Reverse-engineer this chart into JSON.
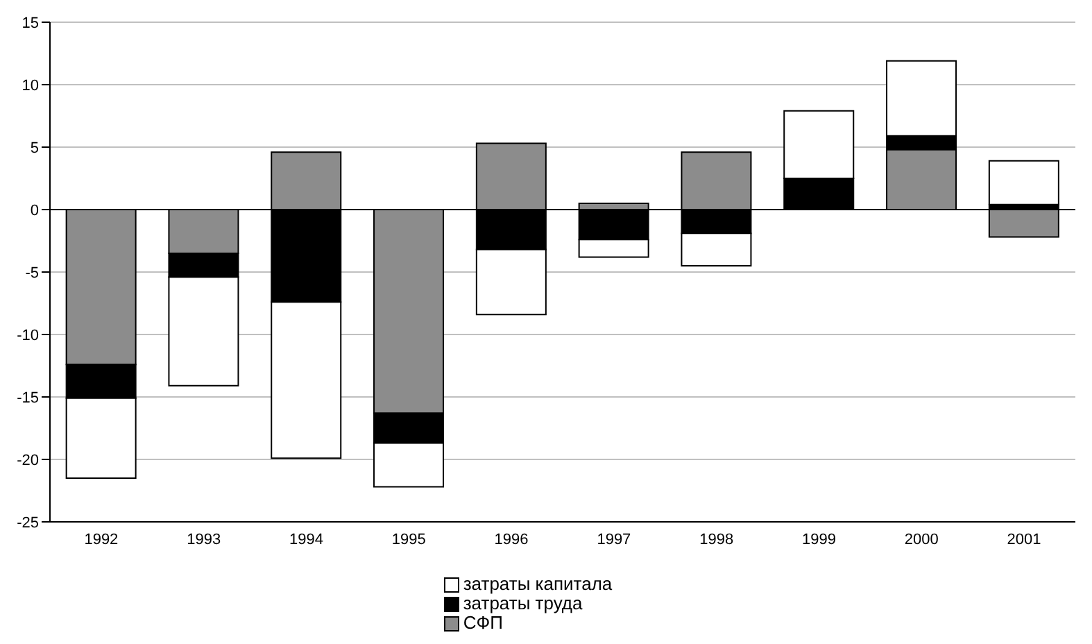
{
  "chart_data": {
    "type": "bar",
    "stacked": true,
    "categories": [
      "1992",
      "1993",
      "1994",
      "1995",
      "1996",
      "1997",
      "1998",
      "1999",
      "2000",
      "2001"
    ],
    "series": [
      {
        "name": "СФП",
        "color": "#8c8c8c",
        "values": [
          -12.4,
          -3.5,
          4.6,
          -16.3,
          5.3,
          0.5,
          4.6,
          0,
          4.8,
          -2.2
        ]
      },
      {
        "name": "затраты труда",
        "color": "#000000",
        "values": [
          -2.7,
          -1.9,
          -7.4,
          -2.4,
          -3.2,
          -2.4,
          -1.9,
          2.5,
          1.1,
          0.4
        ]
      },
      {
        "name": "затраты капитала",
        "color": "#ffffff",
        "values": [
          -6.4,
          -8.7,
          -12.5,
          -3.5,
          -5.2,
          -1.4,
          -2.6,
          5.4,
          6.0,
          3.5
        ]
      }
    ],
    "ylim": [
      -25,
      15
    ],
    "yticks": [
      -25,
      -20,
      -15,
      -10,
      -5,
      0,
      5,
      10,
      15
    ],
    "grid": "y",
    "legend": "bottom"
  }
}
